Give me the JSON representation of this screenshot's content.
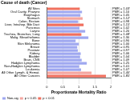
{
  "chart_data": {
    "type": "bar",
    "orientation": "horizontal",
    "stacked": true,
    "title": "Cause of death (Cancer)",
    "x_label": "Proportionate Mortality Ratio",
    "categories": [
      "All Sites",
      "Oral Cavity, Pharynx",
      "Esophagus",
      "Stomach",
      "Colon, Rectum",
      "Liver, Intrahep. Bile Duct",
      "Pancreas",
      "Larynx",
      "Trachea, Bronchus, Lung",
      "Malig. Mesothelioma",
      "Bone",
      "Skin Melanoma",
      "Breast",
      "Prostate",
      "Kidney",
      "Bladder",
      "Brain, CNS",
      "Hodgkin Lymphoma",
      "Non-Hodgkin Lymphoma",
      "Leukemia",
      "All Other Lymph. & Hemat.",
      "All Other Cancers"
    ],
    "series": [
      {
        "name": "Non-sig",
        "color": "#9fa8f0",
        "values": [
          null,
          1.1,
          1.05,
          null,
          0.98,
          null,
          1.02,
          1.2,
          null,
          1.3,
          0.9,
          1.0,
          0.95,
          0.97,
          1.06,
          1.04,
          1.09,
          1.25,
          1.01,
          1.07,
          null,
          null
        ],
        "value_labels": [
          null,
          "PMR = 1.10",
          "PMR = 1.05",
          null,
          "PMR = 0.98",
          null,
          "PMR = 1.02",
          "PMR = 1.20",
          null,
          "PMR = 1.30",
          "PMR = 0.90",
          "PMR = 1.00",
          "PMR = 0.95",
          "PMR = 0.97",
          "PMR = 1.06",
          "PMR = 1.04",
          "PMR = 1.09",
          "PMR = 1.25",
          "PMR = 1.01",
          "PMR = 1.07",
          null,
          null
        ]
      },
      {
        "name": "p < 0.05",
        "color": "#f4a6a0",
        "values": [
          null,
          null,
          null,
          1.12,
          null,
          null,
          null,
          null,
          null,
          null,
          null,
          null,
          null,
          null,
          null,
          null,
          null,
          null,
          null,
          null,
          1.4,
          null
        ],
        "value_labels": [
          null,
          null,
          null,
          "PMR = 1.12*",
          null,
          null,
          null,
          null,
          null,
          null,
          null,
          null,
          null,
          null,
          null,
          null,
          null,
          null,
          null,
          null,
          "PMR = 1.40*",
          null
        ]
      },
      {
        "name": "p < 0.01",
        "color": "#f0705f",
        "values": [
          1.03,
          null,
          null,
          null,
          null,
          1.15,
          null,
          null,
          1.08,
          null,
          null,
          null,
          null,
          null,
          null,
          null,
          null,
          null,
          null,
          null,
          null,
          1.85
        ],
        "value_labels": [
          "PMR = 1.03**",
          null,
          null,
          null,
          null,
          "PMR = 1.15**",
          null,
          null,
          "PMR = 1.08**",
          null,
          null,
          null,
          null,
          null,
          null,
          null,
          null,
          null,
          null,
          null,
          null,
          "PMR = 1.85**"
        ]
      }
    ],
    "xlim": [
      0,
      2
    ],
    "xticks": [
      0,
      0.5,
      1,
      1.5,
      2
    ],
    "grid": true,
    "legend": "bottom left",
    "data_labels": true
  }
}
